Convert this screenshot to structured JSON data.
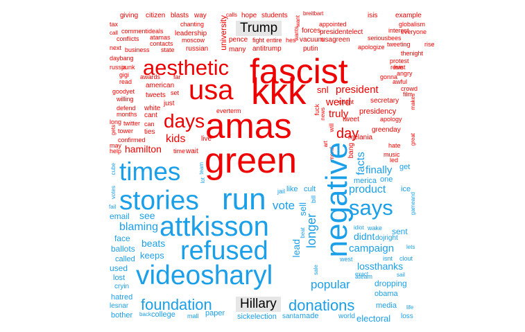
{
  "labels": {
    "top": "Trump",
    "bottom": "Hillary"
  },
  "colors": {
    "top_group": "#ee0000",
    "bottom_group": "#1a9fe8",
    "label_bg": "#e6e6e6"
  },
  "words": [
    {
      "t": "giving",
      "c": "r"
    },
    {
      "t": "citizen",
      "c": "r"
    },
    {
      "t": "blasts",
      "c": "r"
    },
    {
      "t": "way",
      "c": "r"
    },
    {
      "t": "calls",
      "c": "r"
    },
    {
      "t": "hope",
      "c": "r"
    },
    {
      "t": "students",
      "c": "r"
    },
    {
      "t": "breitbart",
      "c": "r"
    },
    {
      "t": "isis",
      "c": "r"
    },
    {
      "t": "example",
      "c": "r"
    },
    {
      "t": "tax",
      "c": "r"
    },
    {
      "t": "commentideals",
      "c": "r"
    },
    {
      "t": "chanting",
      "c": "r"
    },
    {
      "t": "appointed",
      "c": "r"
    },
    {
      "t": "globalism",
      "c": "r"
    },
    {
      "t": "call",
      "c": "r"
    },
    {
      "t": "conflicts",
      "c": "r"
    },
    {
      "t": "atamas",
      "c": "r"
    },
    {
      "t": "leadership",
      "c": "r"
    },
    {
      "t": "fight",
      "c": "r"
    },
    {
      "t": "entire",
      "c": "r"
    },
    {
      "t": "forces",
      "c": "r"
    },
    {
      "t": "presidentelect",
      "c": "r"
    },
    {
      "t": "interest",
      "c": "r"
    },
    {
      "t": "everyone",
      "c": "r"
    },
    {
      "t": "contacts",
      "c": "r"
    },
    {
      "t": "moscow",
      "c": "r"
    },
    {
      "t": "pence",
      "c": "r"
    },
    {
      "t": "hes",
      "c": "r"
    },
    {
      "t": "vacuum",
      "c": "r"
    },
    {
      "t": "usagreen",
      "c": "r"
    },
    {
      "t": "seriousbees",
      "c": "r"
    },
    {
      "t": "next",
      "c": "r"
    },
    {
      "t": "business",
      "c": "r"
    },
    {
      "t": "state",
      "c": "r"
    },
    {
      "t": "russian",
      "c": "r"
    },
    {
      "t": "many",
      "c": "r"
    },
    {
      "t": "antitrump",
      "c": "r"
    },
    {
      "t": "putin",
      "c": "r"
    },
    {
      "t": "apologize",
      "c": "r"
    },
    {
      "t": "tweeting",
      "c": "r"
    },
    {
      "t": "rise",
      "c": "r"
    },
    {
      "t": "thenight",
      "c": "r"
    },
    {
      "t": "daybang",
      "c": "r"
    },
    {
      "t": "russia",
      "c": "r"
    },
    {
      "t": "punk",
      "c": "r"
    },
    {
      "t": "protest",
      "c": "r"
    },
    {
      "t": "resist",
      "c": "r"
    },
    {
      "t": "live",
      "c": "r"
    },
    {
      "t": "angry",
      "c": "r"
    },
    {
      "t": "gigi",
      "c": "r"
    },
    {
      "t": "read",
      "c": "r"
    },
    {
      "t": "awards",
      "c": "r"
    },
    {
      "t": "far",
      "c": "r"
    },
    {
      "t": "gonna",
      "c": "r"
    },
    {
      "t": "awful",
      "c": "r"
    },
    {
      "t": "american",
      "c": "r"
    },
    {
      "t": "snl",
      "c": "r"
    },
    {
      "t": "goodyet",
      "c": "r"
    },
    {
      "t": "tweets",
      "c": "r"
    },
    {
      "t": "set",
      "c": "r"
    },
    {
      "t": "crowd",
      "c": "r"
    },
    {
      "t": "film",
      "c": "r"
    },
    {
      "t": "willing",
      "c": "r"
    },
    {
      "t": "chant",
      "c": "r"
    },
    {
      "t": "secretary",
      "c": "r"
    },
    {
      "t": "just",
      "c": "r"
    },
    {
      "t": "defend",
      "c": "r"
    },
    {
      "t": "white",
      "c": "r"
    },
    {
      "t": "presidency",
      "c": "r"
    },
    {
      "t": "months",
      "c": "r"
    },
    {
      "t": "cant",
      "c": "r"
    },
    {
      "t": "everterm",
      "c": "r"
    },
    {
      "t": "fuck",
      "c": "r"
    },
    {
      "t": "tweet",
      "c": "r"
    },
    {
      "t": "apology",
      "c": "r"
    },
    {
      "t": "long",
      "c": "r"
    },
    {
      "t": "twitter",
      "c": "r"
    },
    {
      "t": "can",
      "c": "r"
    },
    {
      "t": "greenday",
      "c": "r"
    },
    {
      "t": "tower",
      "c": "r"
    },
    {
      "t": "ties",
      "c": "r"
    },
    {
      "t": "confirmed",
      "c": "r"
    },
    {
      "t": "live",
      "c": "r"
    },
    {
      "t": "melania",
      "c": "r"
    },
    {
      "t": "may",
      "c": "r"
    },
    {
      "t": "help",
      "c": "r"
    },
    {
      "t": "time",
      "c": "r"
    },
    {
      "t": "wait",
      "c": "r"
    },
    {
      "t": "hate",
      "c": "r"
    },
    {
      "t": "music",
      "c": "r"
    },
    {
      "t": "led",
      "c": "r"
    },
    {
      "t": "makes",
      "c": "r"
    },
    {
      "t": "gets",
      "c": "r"
    },
    {
      "t": "great",
      "c": "r"
    },
    {
      "t": "bang",
      "c": "r"
    },
    {
      "t": "art",
      "c": "r"
    },
    {
      "t": "mend",
      "c": "r"
    },
    {
      "t": "will",
      "c": "r"
    },
    {
      "t": "news",
      "c": "r"
    },
    {
      "t": "fascist",
      "c": "r"
    },
    {
      "t": "aesthetic",
      "c": "r"
    },
    {
      "t": "usa",
      "c": "r"
    },
    {
      "t": "kkk",
      "c": "r"
    },
    {
      "t": "amas",
      "c": "r"
    },
    {
      "t": "green",
      "c": "r"
    },
    {
      "t": "days",
      "c": "r"
    },
    {
      "t": "president",
      "c": "r"
    },
    {
      "t": "weird",
      "c": "r"
    },
    {
      "t": "truly",
      "c": "r"
    },
    {
      "t": "day",
      "c": "r"
    },
    {
      "t": "kids",
      "c": "r"
    },
    {
      "t": "hamilton",
      "c": "r"
    },
    {
      "t": "university",
      "c": "r"
    },
    {
      "t": "want",
      "c": "r"
    },
    {
      "t": "wants",
      "c": "r"
    },
    {
      "t": "times",
      "c": "b"
    },
    {
      "t": "stories",
      "c": "b"
    },
    {
      "t": "run",
      "c": "b"
    },
    {
      "t": "says",
      "c": "b"
    },
    {
      "t": "negative",
      "c": "b"
    },
    {
      "t": "attkisson",
      "c": "b"
    },
    {
      "t": "refused",
      "c": "b"
    },
    {
      "t": "videosharyl",
      "c": "b"
    },
    {
      "t": "foundation",
      "c": "b"
    },
    {
      "t": "donations",
      "c": "b"
    },
    {
      "t": "popular",
      "c": "b"
    },
    {
      "t": "vote",
      "c": "b"
    },
    {
      "t": "product",
      "c": "b"
    },
    {
      "t": "sell",
      "c": "b"
    },
    {
      "t": "longer",
      "c": "b"
    },
    {
      "t": "didnt",
      "c": "b"
    },
    {
      "t": "campaign",
      "c": "b"
    },
    {
      "t": "lossthanks",
      "c": "b"
    },
    {
      "t": "finally",
      "c": "b"
    },
    {
      "t": "facts",
      "c": "b"
    },
    {
      "t": "blaming",
      "c": "b"
    },
    {
      "t": "see",
      "c": "b"
    },
    {
      "t": "email",
      "c": "b"
    },
    {
      "t": "beats",
      "c": "b"
    },
    {
      "t": "keeps",
      "c": "b"
    },
    {
      "t": "face",
      "c": "b"
    },
    {
      "t": "ballots",
      "c": "b"
    },
    {
      "t": "called",
      "c": "b"
    },
    {
      "t": "used",
      "c": "b"
    },
    {
      "t": "lost",
      "c": "b"
    },
    {
      "t": "cryin",
      "c": "b"
    },
    {
      "t": "hatred",
      "c": "b"
    },
    {
      "t": "lesnar",
      "c": "b"
    },
    {
      "t": "bother",
      "c": "b"
    },
    {
      "t": "back",
      "c": "b"
    },
    {
      "t": "college",
      "c": "b"
    },
    {
      "t": "mall",
      "c": "b"
    },
    {
      "t": "paper",
      "c": "b"
    },
    {
      "t": "sickelection",
      "c": "b"
    },
    {
      "t": "santa",
      "c": "b"
    },
    {
      "t": "made",
      "c": "b"
    },
    {
      "t": "world",
      "c": "b"
    },
    {
      "t": "electoral",
      "c": "b"
    },
    {
      "t": "loss",
      "c": "b"
    },
    {
      "t": "life",
      "c": "b"
    },
    {
      "t": "media",
      "c": "b"
    },
    {
      "t": "obama",
      "c": "b"
    },
    {
      "t": "dropping",
      "c": "b"
    },
    {
      "t": "ateam",
      "c": "b"
    },
    {
      "t": "sail",
      "c": "b"
    },
    {
      "t": "exact",
      "c": "b"
    },
    {
      "t": "sale",
      "c": "b"
    },
    {
      "t": "west",
      "c": "b"
    },
    {
      "t": "isnt",
      "c": "b"
    },
    {
      "t": "clout",
      "c": "b"
    },
    {
      "t": "lets",
      "c": "b"
    },
    {
      "t": "dojright",
      "c": "b"
    },
    {
      "t": "idiot",
      "c": "b"
    },
    {
      "t": "wake",
      "c": "b"
    },
    {
      "t": "sent",
      "c": "b"
    },
    {
      "t": "beat",
      "c": "b"
    },
    {
      "t": "lead",
      "c": "b"
    },
    {
      "t": "jail",
      "c": "b"
    },
    {
      "t": "like",
      "c": "b"
    },
    {
      "t": "cult",
      "c": "b"
    },
    {
      "t": "bill",
      "c": "b"
    },
    {
      "t": "merica",
      "c": "b"
    },
    {
      "t": "one",
      "c": "b"
    },
    {
      "t": "ice",
      "c": "b"
    },
    {
      "t": "gameand",
      "c": "b"
    },
    {
      "t": "get",
      "c": "b"
    },
    {
      "t": "cube",
      "c": "b"
    },
    {
      "t": "votes",
      "c": "b"
    },
    {
      "t": "fail",
      "c": "b"
    },
    {
      "t": "lot",
      "c": "b"
    },
    {
      "t": "team",
      "c": "b"
    }
  ]
}
